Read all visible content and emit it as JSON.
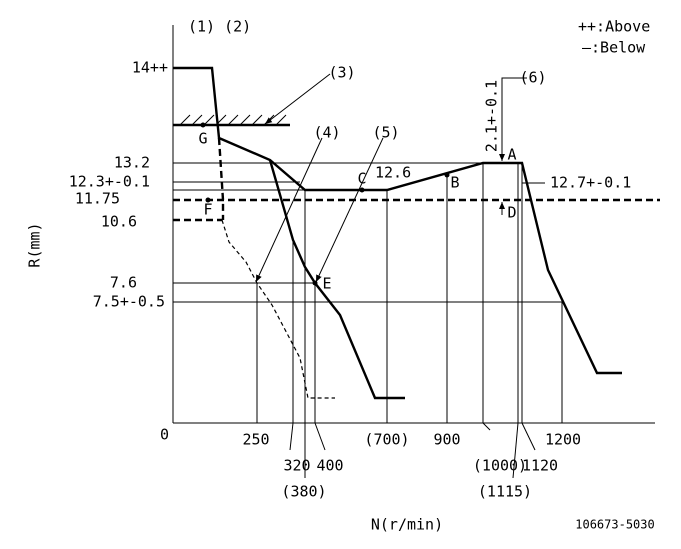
{
  "header": {
    "refs": "(1) (2)",
    "legend_above": "++:Above",
    "legend_below": "—:Below"
  },
  "y_labels": {
    "top": "14++",
    "r132": "13.2",
    "r123": "12.3+-0.1",
    "r1175": "11.75",
    "r106": "10.6",
    "r76": "7.6",
    "r75": "7.5+-0.5",
    "zero": "0",
    "axis": "R(mm)"
  },
  "x_labels": {
    "n250": "250",
    "n320": "320",
    "n380": "(380)",
    "n400": "400",
    "n700": "(700)",
    "n900": "900",
    "n1000": "(1000)",
    "n1115": "(1115)",
    "n1120": "1120",
    "n1200": "1200",
    "axis": "N(r/min)"
  },
  "points": {
    "A": "A",
    "B": "B",
    "C": "C",
    "D": "D",
    "E": "E",
    "F": "F",
    "G": "G"
  },
  "callouts": {
    "c3": "(3)",
    "c4": "(4)",
    "c5": "(5)",
    "c6": "(6)",
    "delta": "2.1+-0.1",
    "b126": "12.6",
    "a127": "12.7+-0.1"
  },
  "footer": {
    "code": "106673-5030"
  }
}
